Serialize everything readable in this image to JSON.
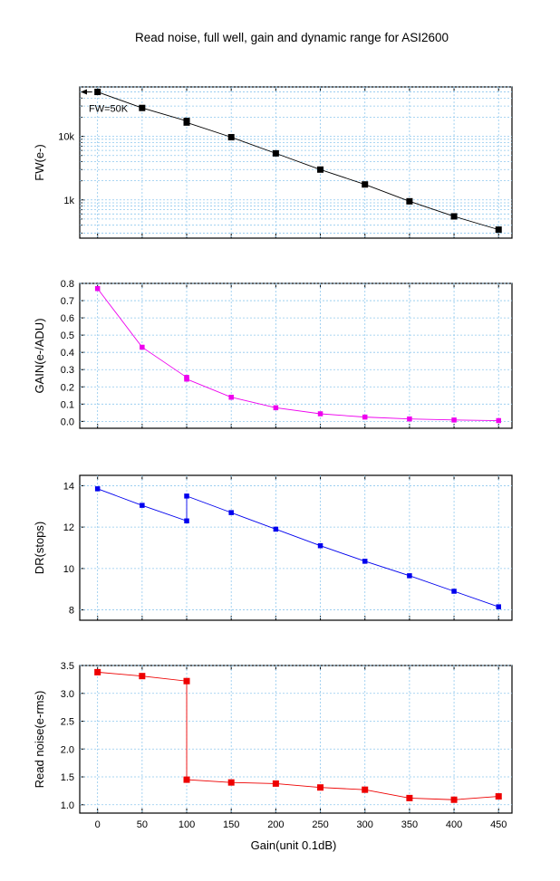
{
  "title": "Read noise, full well, gain and dynamic range for ASI2600",
  "chart_data": {
    "type": "line",
    "xlabel": "Gain(unit 0.1dB)",
    "xlim": [
      -20,
      465
    ],
    "x_ticks": [
      0,
      50,
      100,
      150,
      200,
      250,
      300,
      350,
      400,
      450
    ],
    "x_tick_labels": [
      "0",
      "50",
      "100",
      "150",
      "200",
      "250",
      "300",
      "350",
      "400",
      "450"
    ],
    "grid": true,
    "panels": [
      {
        "id": "fw",
        "ylabel": "FW(e-)",
        "yscale": "log",
        "ylim": [
          250,
          60000
        ],
        "y_tick_labels": [
          "1k",
          "10k"
        ],
        "y_tick_values": [
          1000,
          10000
        ],
        "color": "#000000",
        "annotation": "FW=50K",
        "x": [
          0,
          50,
          100,
          100,
          150,
          200,
          250,
          300,
          350,
          400,
          450
        ],
        "y": [
          50000,
          28000,
          17500,
          16500,
          9700,
          5400,
          3000,
          1750,
          950,
          550,
          340
        ]
      },
      {
        "id": "gain",
        "ylabel": "GAIN(e-/ADU)",
        "yscale": "linear",
        "ylim": [
          -0.04,
          0.8
        ],
        "y_tick_labels": [
          "0.0",
          "0.1",
          "0.2",
          "0.3",
          "0.4",
          "0.5",
          "0.6",
          "0.7",
          "0.8"
        ],
        "y_tick_values": [
          0,
          0.1,
          0.2,
          0.3,
          0.4,
          0.5,
          0.6,
          0.7,
          0.8
        ],
        "color": "#ee00ee",
        "x": [
          0,
          50,
          100,
          100,
          150,
          200,
          250,
          300,
          350,
          400,
          450
        ],
        "y": [
          0.77,
          0.43,
          0.255,
          0.245,
          0.14,
          0.079,
          0.044,
          0.025,
          0.014,
          0.008,
          0.0045
        ]
      },
      {
        "id": "dr",
        "ylabel": "DR(stops)",
        "yscale": "linear",
        "ylim": [
          7.5,
          14.5
        ],
        "y_tick_labels": [
          "8",
          "10",
          "12",
          "14"
        ],
        "y_tick_values": [
          8,
          10,
          12,
          14
        ],
        "color": "#0000ee",
        "x": [
          0,
          50,
          100,
          100,
          150,
          200,
          250,
          300,
          350,
          400,
          450
        ],
        "y": [
          13.85,
          13.05,
          12.3,
          13.5,
          12.7,
          11.9,
          11.1,
          10.35,
          9.65,
          8.9,
          8.15
        ]
      },
      {
        "id": "rn",
        "ylabel": "Read noise(e-rms)",
        "yscale": "linear",
        "ylim": [
          0.85,
          3.5
        ],
        "y_tick_labels": [
          "1.0",
          "1.5",
          "2.0",
          "2.5",
          "3.0",
          "3.5"
        ],
        "y_tick_values": [
          1.0,
          1.5,
          2.0,
          2.5,
          3.0,
          3.5
        ],
        "color": "#ee0000",
        "x": [
          0,
          50,
          100,
          100,
          150,
          200,
          250,
          300,
          350,
          400,
          450
        ],
        "y": [
          3.38,
          3.31,
          3.22,
          1.45,
          1.4,
          1.38,
          1.31,
          1.27,
          1.12,
          1.09,
          1.15
        ]
      }
    ]
  }
}
